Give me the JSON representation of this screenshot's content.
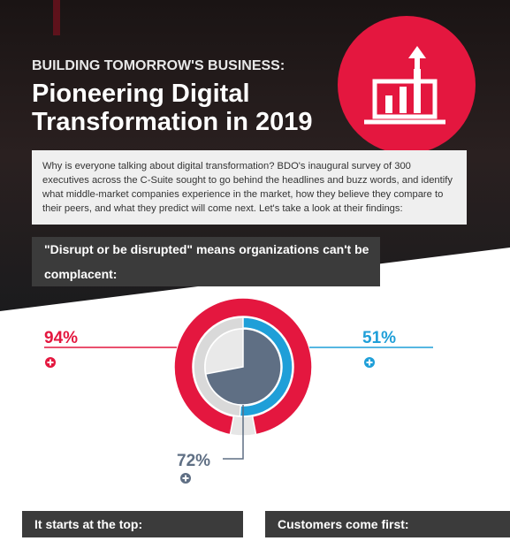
{
  "header": {
    "kicker": "BUILDING TOMORROW'S BUSINESS:",
    "title_line1": "Pioneering Digital",
    "title_line2": "Transformation in 2019"
  },
  "intro": "Why is everyone talking about digital transformation? BDO's inaugural survey of 300 executives across the C-Suite sought to go behind the headlines and buzz words, and identify what middle-market companies experience in the market, how they believe they compare to their peers, and what they predict will come next. Let's take a look at their findings:",
  "section_heading": "\"Disrupt or be disrupted\" means organizations can't be complacent:",
  "chart_data": {
    "type": "nested-donut",
    "series": [
      {
        "values": [
          94
        ],
        "value_labels": [
          "94%"
        ],
        "color": "#e4173f"
      },
      {
        "values": [
          51
        ],
        "value_labels": [
          "51%"
        ],
        "color": "#1f9fd8"
      },
      {
        "values": [
          72
        ],
        "value_labels": [
          "72%"
        ],
        "color": "#5f6f84"
      }
    ]
  },
  "footer_headings": [
    "It starts at the top:",
    "Customers come first:"
  ]
}
